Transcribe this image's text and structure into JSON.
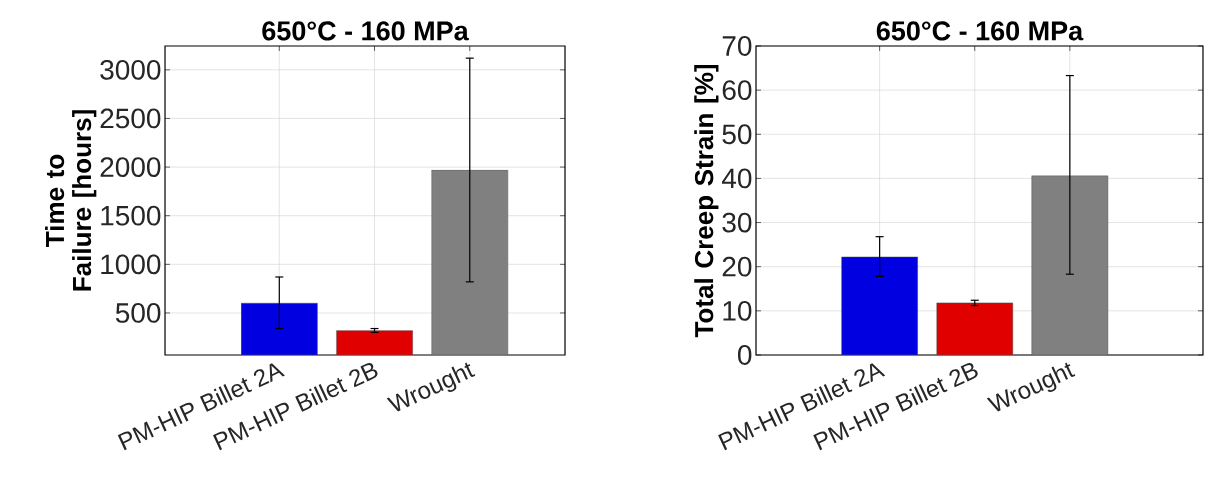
{
  "chart_data": [
    {
      "type": "bar",
      "title": "650°C - 160 MPa",
      "ylabel": "Time to Failure [hours]",
      "categories": [
        "PM-HIP Billet 2A",
        "PM-HIP Billet 2B",
        "Wrought"
      ],
      "values": [
        600,
        320,
        1970
      ],
      "colors": [
        "#0000e0",
        "#e00000",
        "#808080"
      ],
      "errors": [
        [
          340,
          870
        ],
        [
          300,
          340
        ],
        [
          820,
          3120
        ]
      ],
      "ylim": [
        68,
        3245
      ],
      "yticks": [
        500,
        1000,
        1500,
        2000,
        2500,
        3000
      ],
      "grid": true
    },
    {
      "type": "bar",
      "title": "650°C - 160 MPa",
      "ylabel": "Total Creep Strain [%]",
      "categories": [
        "PM-HIP Billet 2A",
        "PM-HIP Billet 2B",
        "Wrought"
      ],
      "values": [
        22.2,
        11.8,
        40.6
      ],
      "colors": [
        "#0000e0",
        "#e00000",
        "#808080"
      ],
      "errors": [
        [
          17.8,
          26.8
        ],
        [
          11.2,
          12.4
        ],
        [
          18.3,
          63.3
        ]
      ],
      "ylim": [
        0,
        70
      ],
      "yticks": [
        0,
        10,
        20,
        30,
        40,
        50,
        60,
        70
      ],
      "grid": true
    }
  ]
}
